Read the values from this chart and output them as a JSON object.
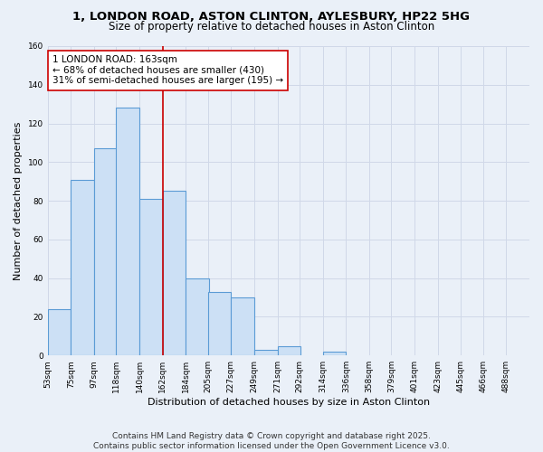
{
  "title": "1, LONDON ROAD, ASTON CLINTON, AYLESBURY, HP22 5HG",
  "subtitle": "Size of property relative to detached houses in Aston Clinton",
  "xlabel": "Distribution of detached houses by size in Aston Clinton",
  "ylabel": "Number of detached properties",
  "bin_labels": [
    "53sqm",
    "75sqm",
    "97sqm",
    "118sqm",
    "140sqm",
    "162sqm",
    "184sqm",
    "205sqm",
    "227sqm",
    "249sqm",
    "271sqm",
    "292sqm",
    "314sqm",
    "336sqm",
    "358sqm",
    "379sqm",
    "401sqm",
    "423sqm",
    "445sqm",
    "466sqm",
    "488sqm"
  ],
  "bin_edges": [
    53,
    75,
    97,
    118,
    140,
    162,
    184,
    205,
    227,
    249,
    271,
    292,
    314,
    336,
    358,
    379,
    401,
    423,
    445,
    466,
    488
  ],
  "bar_heights": [
    24,
    91,
    107,
    128,
    81,
    85,
    40,
    33,
    30,
    3,
    5,
    0,
    2,
    0,
    0,
    0,
    0,
    0,
    0,
    0
  ],
  "bar_fill": "#cce0f5",
  "bar_edge": "#5b9bd5",
  "bar_edge_width": 0.8,
  "vline_x": 162,
  "vline_color": "#cc0000",
  "annotation_title": "1 LONDON ROAD: 163sqm",
  "annotation_line1": "← 68% of detached houses are smaller (430)",
  "annotation_line2": "31% of semi-detached houses are larger (195) →",
  "annotation_box_color": "#ffffff",
  "annotation_box_edge": "#cc0000",
  "ylim": [
    0,
    160
  ],
  "yticks": [
    0,
    20,
    40,
    60,
    80,
    100,
    120,
    140,
    160
  ],
  "grid_color": "#d0d8e8",
  "bg_color": "#eaf0f8",
  "footer_line1": "Contains HM Land Registry data © Crown copyright and database right 2025.",
  "footer_line2": "Contains public sector information licensed under the Open Government Licence v3.0.",
  "title_fontsize": 9.5,
  "subtitle_fontsize": 8.5,
  "axis_label_fontsize": 8,
  "tick_fontsize": 6.5,
  "annotation_fontsize": 7.5,
  "footer_fontsize": 6.5
}
